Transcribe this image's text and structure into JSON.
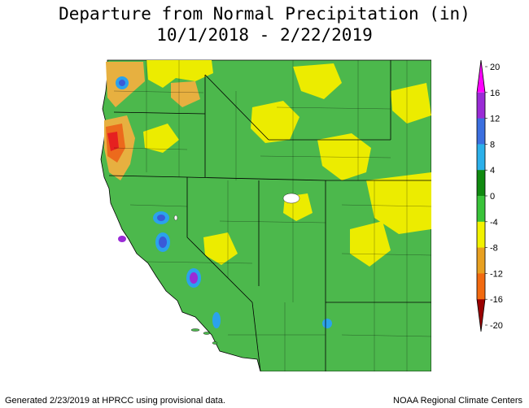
{
  "title": {
    "line1": "Departure from Normal Precipitation (in)",
    "line2": "10/1/2018 - 2/22/2019"
  },
  "legend": {
    "labels": [
      "20",
      "16",
      "12",
      "8",
      "4",
      "0",
      "-4",
      "-8",
      "-12",
      "-16",
      "-20"
    ],
    "colors": [
      "#ff00ff",
      "#9a2bd6",
      "#3b6fe0",
      "#2bb0ea",
      "#108a10",
      "#39c339",
      "#f2f200",
      "#e8a020",
      "#f26a10",
      "#ee0a0a",
      "#9a0000"
    ]
  },
  "map": {
    "colors": {
      "water": "#ffffff",
      "land": "#4cb84c",
      "dry": "#ecec00",
      "drier": "#e7b040",
      "driest": "#ec6a1c",
      "severe": "#e62020",
      "wet": "#2ba2ec",
      "wetter": "#3a5ad8",
      "wettest": "#9a2bd6",
      "boundary": "#000000"
    }
  },
  "footer": {
    "left": "Generated 2/23/2019 at HPRCC using provisional data.",
    "right": "NOAA Regional Climate Centers"
  }
}
